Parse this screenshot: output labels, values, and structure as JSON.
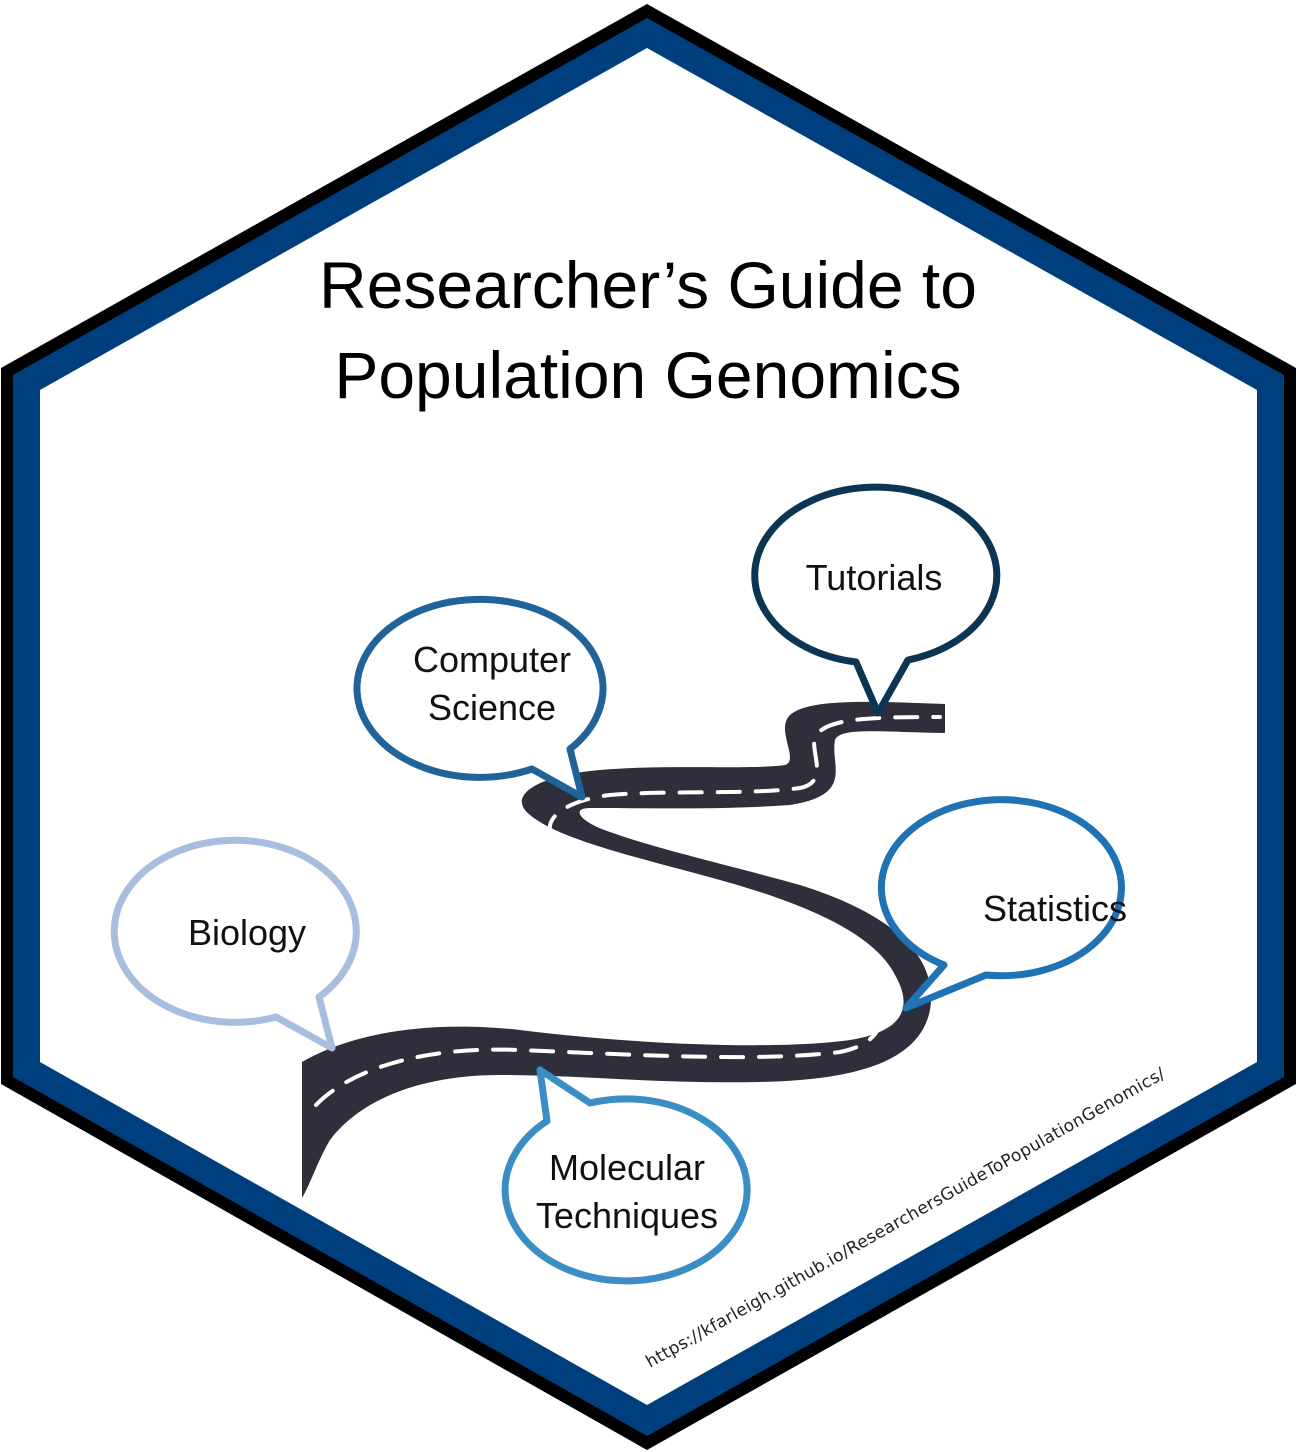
{
  "title": {
    "line1": "Researcher’s Guide to",
    "line2": "Population Genomics"
  },
  "bubbles": {
    "biology": {
      "label": "Biology",
      "color": "#a7bedf"
    },
    "computer_science": {
      "line1": "Computer",
      "line2": "Science",
      "color": "#1f6399"
    },
    "tutorials": {
      "label": "Tutorials",
      "color": "#0c3553"
    },
    "statistics": {
      "label": "Statistics",
      "color": "#1f73b4"
    },
    "molecular": {
      "line1": "Molecular",
      "line2": "Techniques",
      "color": "#3a8ec4"
    }
  },
  "url": "https://kfarleigh.github.io/ResearchersGuideToPopulationGenomics/",
  "colors": {
    "hex_outer": "#000000",
    "hex_band": "#003f7d",
    "road": "#2f2f3b",
    "road_dash": "#ffffff"
  }
}
